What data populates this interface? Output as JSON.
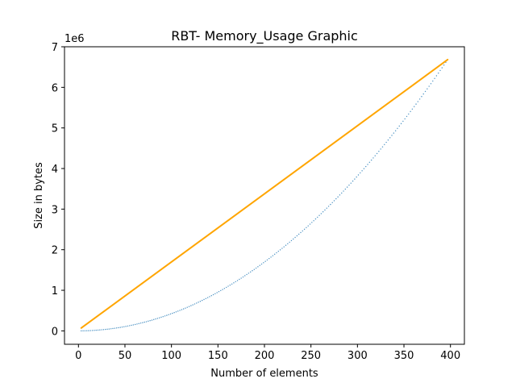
{
  "chart_data": {
    "type": "scatter",
    "title": "RBT- Memory_Usage Graphic",
    "xlabel": "Number of elements",
    "ylabel": "Size in bytes",
    "y_offset_text": "1e6",
    "xlim": [
      -15,
      415
    ],
    "ylim": [
      -0.33,
      7.0
    ],
    "y_unit": "millions of bytes",
    "xticks": [
      0,
      50,
      100,
      150,
      200,
      250,
      300,
      350,
      400
    ],
    "yticks": [
      0,
      1,
      2,
      3,
      4,
      5,
      6,
      7
    ],
    "grid": false,
    "series": [
      {
        "marker": "line",
        "color": "#ffa500",
        "x_range": [
          3,
          397
        ],
        "slope": 0.016782,
        "intercept": 0.02
      },
      {
        "marker": "dots",
        "color": "#1f77b4",
        "x_range": [
          3,
          397
        ],
        "quadratic_coefficient": 4.24e-05,
        "linear_coefficient": 0.0,
        "intercept": 0.0,
        "step": 2
      }
    ]
  }
}
